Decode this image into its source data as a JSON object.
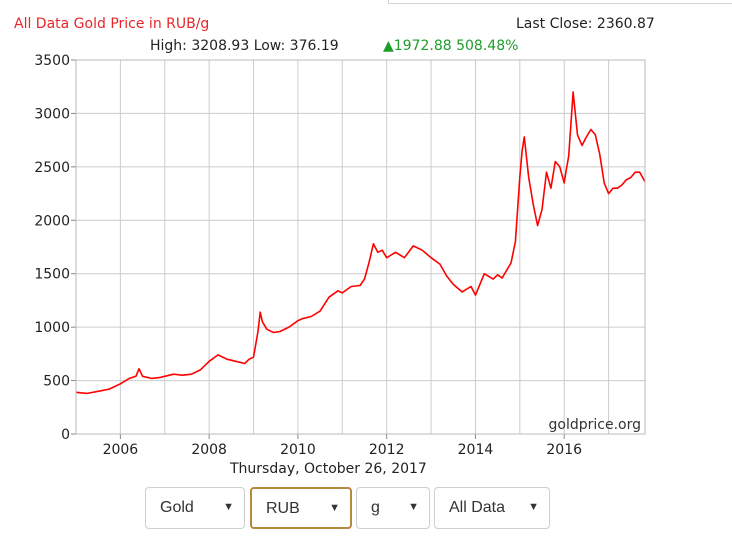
{
  "header": {
    "title": "All Data Gold Price in RUB/g",
    "last_close": "Last Close: 2360.87",
    "high_low": "High: 3208.93 Low: 376.19",
    "change": "▲1972.88 508.48%"
  },
  "footer": {
    "date": "Thursday, October 26, 2017",
    "watermark": "goldprice.org"
  },
  "controls": {
    "metal": "Gold",
    "currency": "RUB",
    "unit": "g",
    "range": "All Data",
    "arrow": "▼"
  },
  "colors": {
    "line": "#ff0000",
    "title": "#e8262a",
    "change": "#1f9d2b",
    "grid": "#cccccc"
  },
  "chart_data": {
    "type": "line",
    "title": "All Data Gold Price in RUB/g",
    "xlabel": "",
    "ylabel": "",
    "xlim": [
      2005.0,
      2017.82
    ],
    "ylim": [
      0,
      3500
    ],
    "x_ticks": [
      2006,
      2008,
      2010,
      2012,
      2014,
      2016
    ],
    "y_ticks": [
      0,
      500,
      1000,
      1500,
      2000,
      2500,
      3000,
      3500
    ],
    "grid": true,
    "series": [
      {
        "name": "",
        "x": [
          2005.0,
          2005.25,
          2005.5,
          2005.75,
          2006.0,
          2006.2,
          2006.35,
          2006.42,
          2006.5,
          2006.7,
          2006.9,
          2007.0,
          2007.2,
          2007.4,
          2007.6,
          2007.8,
          2008.0,
          2008.2,
          2008.4,
          2008.6,
          2008.8,
          2008.9,
          2009.0,
          2009.1,
          2009.15,
          2009.2,
          2009.3,
          2009.45,
          2009.6,
          2009.8,
          2010.0,
          2010.1,
          2010.3,
          2010.5,
          2010.7,
          2010.9,
          2011.0,
          2011.2,
          2011.4,
          2011.5,
          2011.6,
          2011.7,
          2011.8,
          2011.9,
          2012.0,
          2012.2,
          2012.4,
          2012.6,
          2012.8,
          2013.0,
          2013.2,
          2013.35,
          2013.5,
          2013.7,
          2013.9,
          2014.0,
          2014.2,
          2014.4,
          2014.5,
          2014.6,
          2014.8,
          2014.9,
          2014.95,
          2015.0,
          2015.05,
          2015.1,
          2015.2,
          2015.3,
          2015.4,
          2015.5,
          2015.6,
          2015.7,
          2015.8,
          2015.9,
          2016.0,
          2016.05,
          2016.1,
          2016.2,
          2016.3,
          2016.4,
          2016.5,
          2016.6,
          2016.7,
          2016.8,
          2016.9,
          2017.0,
          2017.1,
          2017.2,
          2017.3,
          2017.4,
          2017.5,
          2017.6,
          2017.7,
          2017.82
        ],
        "values": [
          390,
          380,
          400,
          420,
          470,
          520,
          540,
          610,
          540,
          520,
          530,
          540,
          560,
          550,
          560,
          600,
          680,
          740,
          700,
          680,
          660,
          700,
          720,
          960,
          1140,
          1050,
          980,
          950,
          960,
          1000,
          1060,
          1080,
          1100,
          1150,
          1280,
          1340,
          1320,
          1380,
          1390,
          1450,
          1600,
          1780,
          1700,
          1720,
          1650,
          1700,
          1650,
          1760,
          1720,
          1650,
          1590,
          1480,
          1400,
          1330,
          1380,
          1300,
          1500,
          1450,
          1490,
          1460,
          1600,
          1800,
          2100,
          2400,
          2650,
          2780,
          2400,
          2150,
          1950,
          2100,
          2450,
          2300,
          2550,
          2500,
          2350,
          2480,
          2600,
          3200,
          2800,
          2700,
          2780,
          2850,
          2800,
          2620,
          2350,
          2250,
          2300,
          2300,
          2330,
          2380,
          2400,
          2450,
          2450,
          2360
        ]
      }
    ]
  }
}
